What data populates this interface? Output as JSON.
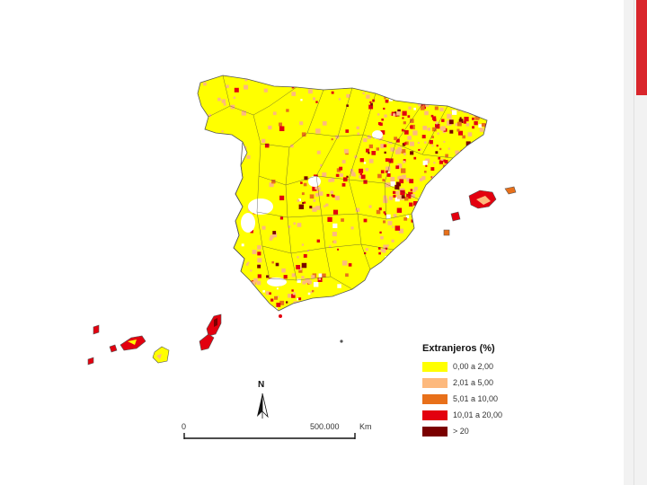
{
  "legend": {
    "title": "Extranjeros (%)",
    "items": [
      {
        "label": "0,00 a 2,00",
        "color": "#ffff00"
      },
      {
        "label": "2,01 a 5,00",
        "color": "#fdb97d"
      },
      {
        "label": "5,01 a 10,00",
        "color": "#e8701a"
      },
      {
        "label": "10,01 a 20,00",
        "color": "#e3000f"
      },
      {
        "label": "> 20",
        "color": "#7a0000"
      }
    ]
  },
  "scale_bar": {
    "start": "0",
    "end": "500.000",
    "unit": "Km"
  },
  "north_arrow": {
    "label": "N"
  },
  "colors": {
    "border": "#444444",
    "accent_bar": "#d9262c",
    "empty_area": "#ffffff"
  }
}
